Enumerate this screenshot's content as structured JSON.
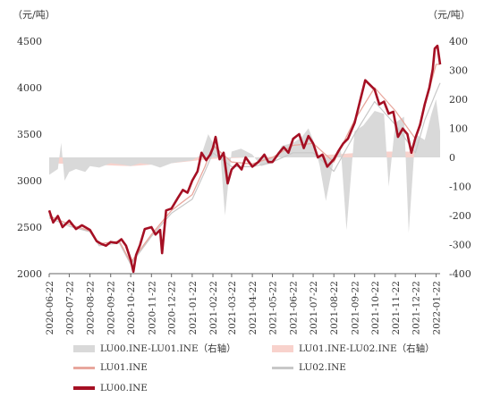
{
  "unit_left": "（元/吨）",
  "unit_right": "（元/吨）",
  "colors": {
    "lu00": "#a50f23",
    "lu01": "#e8a79d",
    "lu02": "#c8c8c8",
    "spread_00_01": "#d9d9d9",
    "spread_01_02": "#f8d2cc"
  },
  "legend": {
    "spread_00_01": "LU00.INE-LU01.INE（右轴）",
    "spread_01_02": "LU01.INE-LU02.INE（右轴）",
    "lu01": "LU01.INE",
    "lu02": "LU02.INE",
    "lu00": "LU00.INE"
  },
  "chart_data": {
    "type": "line",
    "x_start": "2020-06-22",
    "x_end": "2022-01-28",
    "x_tick_labels": [
      "2020-06-22",
      "2020-07-22",
      "2020-08-22",
      "2020-09-22",
      "2020-10-22",
      "2020-11-22",
      "2020-12-22",
      "2021-01-22",
      "2021-02-22",
      "2021-03-22",
      "2021-04-22",
      "2021-05-22",
      "2021-06-22",
      "2021-07-22",
      "2021-08-22",
      "2021-09-22",
      "2021-10-22",
      "2021-11-22",
      "2021-12-22",
      "2022-01-22"
    ],
    "y_left": {
      "min": 2000,
      "max": 4500,
      "ticks": [
        2000,
        2500,
        3000,
        3500,
        4000,
        4500
      ]
    },
    "y_right": {
      "min": -400,
      "max": 400,
      "ticks": [
        -400,
        -300,
        -200,
        -100,
        0,
        100,
        200,
        300,
        400
      ]
    },
    "series": [
      {
        "name": "LU00.INE-LU01.INE（右轴）",
        "axis": "right",
        "style": "area",
        "points": [
          [
            "2020-06-22",
            -60
          ],
          [
            "2020-07-05",
            -40
          ],
          [
            "2020-07-10",
            50
          ],
          [
            "2020-07-15",
            -80
          ],
          [
            "2020-07-22",
            -50
          ],
          [
            "2020-08-01",
            -40
          ],
          [
            "2020-08-15",
            -50
          ],
          [
            "2020-08-22",
            -30
          ],
          [
            "2020-09-05",
            -35
          ],
          [
            "2020-09-22",
            -20
          ],
          [
            "2020-10-10",
            -25
          ],
          [
            "2020-10-22",
            -30
          ],
          [
            "2020-11-05",
            -20
          ],
          [
            "2020-11-22",
            -25
          ],
          [
            "2020-12-05",
            -35
          ],
          [
            "2020-12-22",
            -20
          ],
          [
            "2021-01-05",
            -15
          ],
          [
            "2021-01-22",
            -10
          ],
          [
            "2021-02-05",
            10
          ],
          [
            "2021-02-15",
            80
          ],
          [
            "2021-02-22",
            50
          ],
          [
            "2021-03-05",
            20
          ],
          [
            "2021-03-12",
            -200
          ],
          [
            "2021-03-22",
            20
          ],
          [
            "2021-04-05",
            30
          ],
          [
            "2021-04-22",
            10
          ],
          [
            "2021-05-05",
            -30
          ],
          [
            "2021-05-22",
            -20
          ],
          [
            "2021-06-05",
            40
          ],
          [
            "2021-06-22",
            50
          ],
          [
            "2021-07-05",
            70
          ],
          [
            "2021-07-15",
            100
          ],
          [
            "2021-07-22",
            60
          ],
          [
            "2021-08-01",
            -30
          ],
          [
            "2021-08-10",
            -150
          ],
          [
            "2021-08-22",
            -10
          ],
          [
            "2021-09-01",
            40
          ],
          [
            "2021-09-10",
            -250
          ],
          [
            "2021-09-22",
            90
          ],
          [
            "2021-10-05",
            110
          ],
          [
            "2021-10-22",
            160
          ],
          [
            "2021-11-05",
            150
          ],
          [
            "2021-11-12",
            -100
          ],
          [
            "2021-11-22",
            120
          ],
          [
            "2021-12-05",
            140
          ],
          [
            "2021-12-12",
            -260
          ],
          [
            "2021-12-22",
            80
          ],
          [
            "2022-01-05",
            60
          ],
          [
            "2022-01-15",
            150
          ],
          [
            "2022-01-22",
            200
          ],
          [
            "2022-01-28",
            90
          ]
        ]
      },
      {
        "name": "LU01.INE-LU02.INE（右轴）",
        "axis": "right",
        "style": "area",
        "points": [
          [
            "2020-06-22",
            -20
          ],
          [
            "2020-08-22",
            -25
          ],
          [
            "2020-10-22",
            -30
          ],
          [
            "2020-12-22",
            -20
          ],
          [
            "2021-02-22",
            -5
          ],
          [
            "2021-04-22",
            0
          ],
          [
            "2021-06-22",
            5
          ],
          [
            "2021-08-22",
            10
          ],
          [
            "2021-10-22",
            20
          ],
          [
            "2021-12-22",
            20
          ],
          [
            "2022-01-28",
            30
          ]
        ]
      },
      {
        "name": "LU02.INE",
        "axis": "left",
        "style": "line",
        "points": [
          [
            "2020-06-22",
            2600
          ],
          [
            "2020-07-22",
            2510
          ],
          [
            "2020-08-22",
            2450
          ],
          [
            "2020-09-05",
            2300
          ],
          [
            "2020-10-05",
            2330
          ],
          [
            "2020-10-22",
            2100
          ],
          [
            "2020-11-22",
            2400
          ],
          [
            "2020-12-22",
            2650
          ],
          [
            "2021-01-22",
            2800
          ],
          [
            "2021-02-10",
            3100
          ],
          [
            "2021-02-22",
            3300
          ],
          [
            "2021-03-22",
            3150
          ],
          [
            "2021-04-22",
            3150
          ],
          [
            "2021-05-22",
            3200
          ],
          [
            "2021-06-22",
            3300
          ],
          [
            "2021-07-22",
            3300
          ],
          [
            "2021-08-22",
            3100
          ],
          [
            "2021-09-22",
            3500
          ],
          [
            "2021-10-22",
            3850
          ],
          [
            "2021-11-22",
            3600
          ],
          [
            "2021-12-22",
            3300
          ],
          [
            "2022-01-05",
            3650
          ],
          [
            "2022-01-22",
            3950
          ],
          [
            "2022-01-28",
            4050
          ]
        ]
      },
      {
        "name": "LU01.INE",
        "axis": "left",
        "style": "line",
        "points": [
          [
            "2020-06-22",
            2620
          ],
          [
            "2020-07-22",
            2530
          ],
          [
            "2020-08-22",
            2460
          ],
          [
            "2020-09-05",
            2320
          ],
          [
            "2020-10-05",
            2350
          ],
          [
            "2020-10-22",
            2120
          ],
          [
            "2020-11-22",
            2420
          ],
          [
            "2020-12-22",
            2680
          ],
          [
            "2021-01-22",
            2850
          ],
          [
            "2021-02-10",
            3150
          ],
          [
            "2021-02-22",
            3380
          ],
          [
            "2021-03-22",
            3200
          ],
          [
            "2021-04-22",
            3180
          ],
          [
            "2021-05-22",
            3250
          ],
          [
            "2021-06-22",
            3380
          ],
          [
            "2021-07-22",
            3400
          ],
          [
            "2021-08-22",
            3200
          ],
          [
            "2021-09-22",
            3650
          ],
          [
            "2021-10-22",
            4000
          ],
          [
            "2021-11-22",
            3750
          ],
          [
            "2021-12-22",
            3450
          ],
          [
            "2022-01-05",
            3800
          ],
          [
            "2022-01-22",
            4250
          ],
          [
            "2022-01-28",
            4250
          ]
        ]
      },
      {
        "name": "LU00.INE",
        "axis": "left",
        "style": "line",
        "points": [
          [
            "2020-06-22",
            2680
          ],
          [
            "2020-06-28",
            2550
          ],
          [
            "2020-07-05",
            2620
          ],
          [
            "2020-07-12",
            2500
          ],
          [
            "2020-07-22",
            2570
          ],
          [
            "2020-08-01",
            2480
          ],
          [
            "2020-08-10",
            2520
          ],
          [
            "2020-08-22",
            2470
          ],
          [
            "2020-09-01",
            2350
          ],
          [
            "2020-09-08",
            2320
          ],
          [
            "2020-09-15",
            2300
          ],
          [
            "2020-09-22",
            2340
          ],
          [
            "2020-10-01",
            2330
          ],
          [
            "2020-10-08",
            2370
          ],
          [
            "2020-10-15",
            2300
          ],
          [
            "2020-10-22",
            2150
          ],
          [
            "2020-10-26",
            2020
          ],
          [
            "2020-10-30",
            2200
          ],
          [
            "2020-11-05",
            2310
          ],
          [
            "2020-11-12",
            2480
          ],
          [
            "2020-11-22",
            2500
          ],
          [
            "2020-11-28",
            2420
          ],
          [
            "2020-12-05",
            2470
          ],
          [
            "2020-12-08",
            2220
          ],
          [
            "2020-12-14",
            2680
          ],
          [
            "2020-12-22",
            2700
          ],
          [
            "2021-01-01",
            2820
          ],
          [
            "2021-01-08",
            2900
          ],
          [
            "2021-01-15",
            2870
          ],
          [
            "2021-01-22",
            3000
          ],
          [
            "2021-01-30",
            3100
          ],
          [
            "2021-02-05",
            3300
          ],
          [
            "2021-02-12",
            3220
          ],
          [
            "2021-02-18",
            3280
          ],
          [
            "2021-02-22",
            3350
          ],
          [
            "2021-02-26",
            3470
          ],
          [
            "2021-03-04",
            3230
          ],
          [
            "2021-03-10",
            3300
          ],
          [
            "2021-03-16",
            2970
          ],
          [
            "2021-03-22",
            3120
          ],
          [
            "2021-03-30",
            3180
          ],
          [
            "2021-04-06",
            3120
          ],
          [
            "2021-04-12",
            3250
          ],
          [
            "2021-04-22",
            3150
          ],
          [
            "2021-05-01",
            3200
          ],
          [
            "2021-05-10",
            3280
          ],
          [
            "2021-05-16",
            3200
          ],
          [
            "2021-05-22",
            3200
          ],
          [
            "2021-06-01",
            3300
          ],
          [
            "2021-06-08",
            3360
          ],
          [
            "2021-06-15",
            3300
          ],
          [
            "2021-06-22",
            3450
          ],
          [
            "2021-07-01",
            3500
          ],
          [
            "2021-07-08",
            3350
          ],
          [
            "2021-07-15",
            3480
          ],
          [
            "2021-07-22",
            3400
          ],
          [
            "2021-07-29",
            3250
          ],
          [
            "2021-08-05",
            3280
          ],
          [
            "2021-08-12",
            3150
          ],
          [
            "2021-08-22",
            3230
          ],
          [
            "2021-08-29",
            3320
          ],
          [
            "2021-09-05",
            3400
          ],
          [
            "2021-09-12",
            3450
          ],
          [
            "2021-09-22",
            3620
          ],
          [
            "2021-10-01",
            3880
          ],
          [
            "2021-10-08",
            4080
          ],
          [
            "2021-10-15",
            4030
          ],
          [
            "2021-10-22",
            3980
          ],
          [
            "2021-10-29",
            3820
          ],
          [
            "2021-11-05",
            3850
          ],
          [
            "2021-11-12",
            3720
          ],
          [
            "2021-11-19",
            3740
          ],
          [
            "2021-11-26",
            3470
          ],
          [
            "2021-12-03",
            3560
          ],
          [
            "2021-12-10",
            3500
          ],
          [
            "2021-12-16",
            3300
          ],
          [
            "2021-12-22",
            3460
          ],
          [
            "2021-12-29",
            3600
          ],
          [
            "2022-01-05",
            3820
          ],
          [
            "2022-01-12",
            4000
          ],
          [
            "2022-01-17",
            4200
          ],
          [
            "2022-01-20",
            4420
          ],
          [
            "2022-01-24",
            4450
          ],
          [
            "2022-01-28",
            4250
          ]
        ]
      }
    ]
  }
}
